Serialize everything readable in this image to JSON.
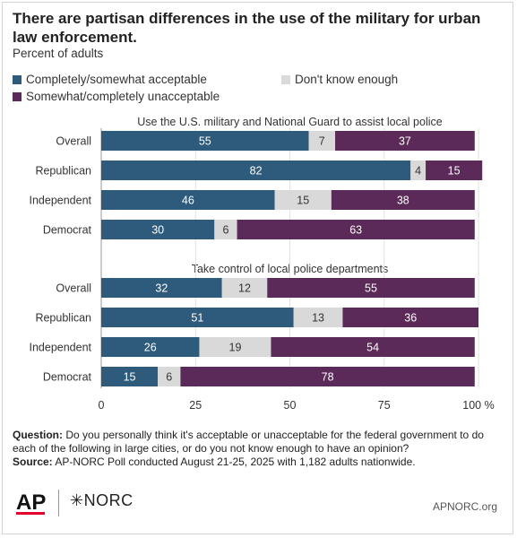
{
  "title": "There are partisan differences in the use of the military for urban law enforcement.",
  "subtitle": "Percent of adults",
  "colors": {
    "acceptable": "#2e5b7b",
    "dont_know": "#d9d9d9",
    "unacceptable": "#5b2a58"
  },
  "chart_data": {
    "type": "bar",
    "orientation": "horizontal",
    "stacked": true,
    "xlim": [
      0,
      100
    ],
    "x_ticks": [
      "0",
      "25",
      "50",
      "75",
      "100 %"
    ],
    "legend": [
      "Completely/somewhat acceptable",
      "Don't know enough",
      "Somewhat/completely unacceptable"
    ],
    "panels": [
      {
        "title": "Use the U.S. military and National Guard to assist local police",
        "categories": [
          "Overall",
          "Republican",
          "Independent",
          "Democrat"
        ],
        "series": [
          {
            "name": "Completely/somewhat acceptable",
            "values": [
              55,
              82,
              46,
              30
            ]
          },
          {
            "name": "Don't know enough",
            "values": [
              7,
              4,
              15,
              6
            ]
          },
          {
            "name": "Somewhat/completely unacceptable",
            "values": [
              37,
              15,
              38,
              63
            ]
          }
        ]
      },
      {
        "title": "Take control of local police departments",
        "categories": [
          "Overall",
          "Republican",
          "Independent",
          "Democrat"
        ],
        "series": [
          {
            "name": "Completely/somewhat acceptable",
            "values": [
              32,
              51,
              26,
              15
            ]
          },
          {
            "name": "Don't know enough",
            "values": [
              12,
              13,
              19,
              6
            ]
          },
          {
            "name": "Somewhat/completely unacceptable",
            "values": [
              55,
              36,
              54,
              78
            ]
          }
        ]
      }
    ]
  },
  "footer": {
    "question_label": "Question:",
    "question_text": "Do you personally think it's acceptable or unacceptable for the federal government to do each of the following in large cities, or do you not know enough to have an opinion?",
    "source_label": "Source:",
    "source_text": "AP-NORC Poll conducted August 21-25, 2025 with 1,182 adults nationwide."
  },
  "logos": {
    "ap": "AP",
    "norc": "NORC",
    "norc_icon": "asterisk-icon"
  },
  "site": "APNORC.org"
}
